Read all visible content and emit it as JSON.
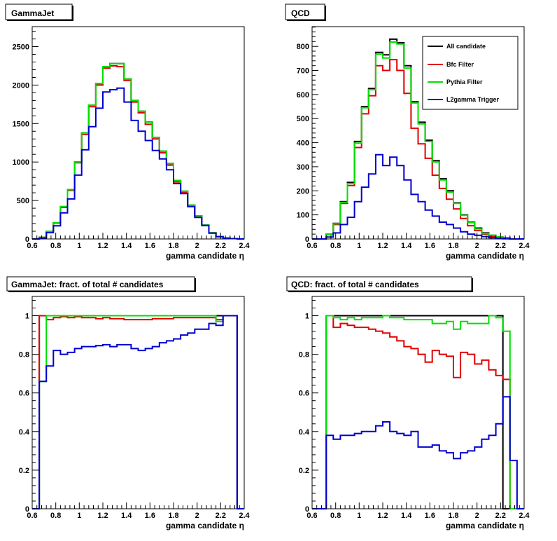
{
  "colors": {
    "all_candidate": "#000000",
    "bfc_filter": "#e00000",
    "pythia_filter": "#00e000",
    "l2gamma_trigger": "#0000d0"
  },
  "legend": {
    "entries": [
      "All candidate",
      "Bfc Filter",
      "Pythia Filter",
      "L2gamma Trigger"
    ]
  },
  "chart_data": [
    {
      "type": "histogram",
      "title": "GammaJet",
      "xlabel": "gamma candidate   η",
      "xlim": [
        0.6,
        2.4
      ],
      "ylim": [
        0,
        2760
      ],
      "xticks": [
        "0.6",
        "0.8",
        "1",
        "1.2",
        "1.4",
        "1.6",
        "1.8",
        "2",
        "2.2",
        "2.4"
      ],
      "yticks": [
        0,
        500,
        1000,
        1500,
        2000,
        2500
      ],
      "bin_edges": [
        0.6,
        0.66,
        0.72,
        0.78,
        0.84,
        0.9,
        0.96,
        1.02,
        1.08,
        1.14,
        1.2,
        1.26,
        1.32,
        1.38,
        1.44,
        1.5,
        1.56,
        1.62,
        1.68,
        1.74,
        1.8,
        1.86,
        1.92,
        1.98,
        2.04,
        2.1,
        2.16,
        2.22,
        2.28,
        2.34,
        2.4
      ],
      "series": [
        {
          "name": "All candidate",
          "color": "#000000",
          "values": [
            0,
            20,
            100,
            210,
            420,
            640,
            1000,
            1380,
            1740,
            2020,
            2240,
            2280,
            2280,
            2080,
            1800,
            1660,
            1520,
            1320,
            1140,
            980,
            760,
            620,
            440,
            300,
            180,
            80,
            30,
            10,
            5,
            0
          ]
        },
        {
          "name": "Bfc Filter",
          "color": "#e00000",
          "values": [
            0,
            20,
            98,
            206,
            410,
            630,
            990,
            1360,
            1720,
            2000,
            2220,
            2250,
            2240,
            2060,
            1780,
            1640,
            1490,
            1300,
            1120,
            960,
            740,
            610,
            430,
            290,
            175,
            78,
            30,
            10,
            5,
            0
          ]
        },
        {
          "name": "Pythia Filter",
          "color": "#00e000",
          "values": [
            0,
            20,
            100,
            210,
            420,
            640,
            1000,
            1380,
            1740,
            2020,
            2240,
            2280,
            2280,
            2080,
            1800,
            1660,
            1520,
            1320,
            1140,
            980,
            760,
            620,
            440,
            300,
            180,
            80,
            30,
            10,
            5,
            0
          ]
        },
        {
          "name": "L2gamma Trigger",
          "color": "#0000d0",
          "values": [
            0,
            13,
            82,
            170,
            340,
            520,
            830,
            1160,
            1460,
            1700,
            1910,
            1940,
            1960,
            1780,
            1540,
            1400,
            1280,
            1150,
            1040,
            900,
            720,
            590,
            420,
            280,
            175,
            75,
            30,
            10,
            5,
            0
          ]
        }
      ]
    },
    {
      "type": "histogram",
      "title": "QCD",
      "xlabel": "gamma candidate   η",
      "xlim": [
        0.6,
        2.4
      ],
      "ylim": [
        0,
        882
      ],
      "xticks": [
        "0.6",
        "0.8",
        "1",
        "1.2",
        "1.4",
        "1.6",
        "1.8",
        "2",
        "2.2",
        "2.4"
      ],
      "yticks": [
        0,
        100,
        200,
        300,
        400,
        500,
        600,
        700,
        800
      ],
      "legend": "top-right",
      "bin_edges": [
        0.6,
        0.66,
        0.72,
        0.78,
        0.84,
        0.9,
        0.96,
        1.02,
        1.08,
        1.14,
        1.2,
        1.26,
        1.32,
        1.38,
        1.44,
        1.5,
        1.56,
        1.62,
        1.68,
        1.74,
        1.8,
        1.86,
        1.92,
        1.98,
        2.04,
        2.1,
        2.16,
        2.22,
        2.28,
        2.34,
        2.4
      ],
      "series": [
        {
          "name": "All candidate",
          "color": "#000000",
          "values": [
            0,
            0,
            20,
            65,
            155,
            235,
            405,
            550,
            625,
            775,
            765,
            830,
            815,
            720,
            570,
            485,
            410,
            325,
            250,
            200,
            150,
            100,
            70,
            45,
            25,
            15,
            8,
            5,
            0,
            0
          ]
        },
        {
          "name": "Bfc Filter",
          "color": "#e00000",
          "values": [
            0,
            0,
            18,
            60,
            148,
            222,
            380,
            520,
            595,
            720,
            700,
            745,
            700,
            605,
            460,
            395,
            335,
            265,
            210,
            165,
            125,
            85,
            55,
            35,
            20,
            10,
            5,
            3,
            0,
            0
          ]
        },
        {
          "name": "Pythia Filter",
          "color": "#00e000",
          "values": [
            0,
            0,
            20,
            63,
            152,
            230,
            398,
            545,
            620,
            768,
            752,
            818,
            810,
            710,
            565,
            478,
            405,
            320,
            245,
            195,
            148,
            98,
            68,
            42,
            22,
            15,
            8,
            5,
            0,
            0
          ]
        },
        {
          "name": "L2gamma Trigger",
          "color": "#0000d0",
          "values": [
            0,
            0,
            8,
            25,
            60,
            90,
            155,
            215,
            270,
            350,
            305,
            340,
            305,
            245,
            185,
            155,
            120,
            95,
            70,
            60,
            45,
            30,
            20,
            15,
            10,
            5,
            3,
            1,
            0,
            0
          ]
        }
      ]
    },
    {
      "type": "histogram",
      "title": "GammaJet: fract. of total # candidates",
      "xlabel": "gamma candidate   η",
      "xlim": [
        0.6,
        2.4
      ],
      "ylim": [
        0,
        1.1
      ],
      "xticks": [
        "0.6",
        "0.8",
        "1",
        "1.2",
        "1.4",
        "1.6",
        "1.8",
        "2",
        "2.2",
        "2.4"
      ],
      "yticks": [
        "0",
        "0.2",
        "0.4",
        "0.6",
        "0.8",
        "1"
      ],
      "bin_edges": [
        0.6,
        0.66,
        0.72,
        0.78,
        0.84,
        0.9,
        0.96,
        1.02,
        1.08,
        1.14,
        1.2,
        1.26,
        1.32,
        1.38,
        1.44,
        1.5,
        1.56,
        1.62,
        1.68,
        1.74,
        1.8,
        1.86,
        1.92,
        1.98,
        2.04,
        2.1,
        2.16,
        2.22,
        2.28,
        2.34,
        2.4
      ],
      "series": [
        {
          "name": "All candidate",
          "color": "#000000",
          "values": [
            0,
            1,
            1,
            1,
            1,
            1,
            1,
            1,
            1,
            1,
            1,
            1,
            1,
            1,
            1,
            1,
            1,
            1,
            1,
            1,
            1,
            1,
            1,
            1,
            1,
            1,
            1,
            1,
            1,
            0
          ]
        },
        {
          "name": "Bfc Filter",
          "color": "#e00000",
          "values": [
            0,
            1,
            0.98,
            0.99,
            0.995,
            0.99,
            0.995,
            0.99,
            0.99,
            0.985,
            0.99,
            0.985,
            0.985,
            0.98,
            0.98,
            0.98,
            0.98,
            0.985,
            0.985,
            0.985,
            0.99,
            0.99,
            0.99,
            0.99,
            0.99,
            0.99,
            0.98,
            1,
            1,
            0
          ]
        },
        {
          "name": "Pythia Filter",
          "color": "#00e000",
          "values": [
            0,
            0.66,
            1,
            1,
            1,
            1,
            1,
            1,
            1,
            1,
            1,
            1,
            1,
            1,
            1,
            1,
            1,
            1,
            1,
            1,
            1,
            1,
            1,
            1,
            1,
            1,
            0.97,
            1,
            1,
            0
          ]
        },
        {
          "name": "L2gamma Trigger",
          "color": "#0000d0",
          "values": [
            0,
            0.66,
            0.74,
            0.82,
            0.8,
            0.81,
            0.83,
            0.84,
            0.84,
            0.845,
            0.85,
            0.84,
            0.85,
            0.85,
            0.83,
            0.82,
            0.83,
            0.84,
            0.86,
            0.87,
            0.88,
            0.9,
            0.91,
            0.93,
            0.93,
            0.96,
            0.95,
            1,
            1,
            0
          ]
        }
      ]
    },
    {
      "type": "histogram",
      "title": "QCD: fract. of total # candidates",
      "xlabel": "gamma candidate   η",
      "xlim": [
        0.6,
        2.4
      ],
      "ylim": [
        0,
        1.1
      ],
      "xticks": [
        "0.6",
        "0.8",
        "1",
        "1.2",
        "1.4",
        "1.6",
        "1.8",
        "2",
        "2.2",
        "2.4"
      ],
      "yticks": [
        "0",
        "0.2",
        "0.4",
        "0.6",
        "0.8",
        "1"
      ],
      "bin_edges": [
        0.6,
        0.66,
        0.72,
        0.78,
        0.84,
        0.9,
        0.96,
        1.02,
        1.08,
        1.14,
        1.2,
        1.26,
        1.32,
        1.38,
        1.44,
        1.5,
        1.56,
        1.62,
        1.68,
        1.74,
        1.8,
        1.86,
        1.92,
        1.98,
        2.04,
        2.1,
        2.16,
        2.22,
        2.28,
        2.34,
        2.4
      ],
      "series": [
        {
          "name": "All candidate",
          "color": "#000000",
          "values": [
            0,
            0,
            1,
            1,
            1,
            1,
            1,
            1,
            1,
            1,
            1,
            1,
            1,
            1,
            1,
            1,
            1,
            1,
            1,
            1,
            1,
            1,
            1,
            1,
            1,
            1,
            1,
            0,
            0,
            0
          ]
        },
        {
          "name": "Bfc Filter",
          "color": "#e00000",
          "values": [
            0,
            0,
            1,
            0.94,
            0.96,
            0.95,
            0.94,
            0.94,
            0.93,
            0.92,
            0.91,
            0.89,
            0.87,
            0.84,
            0.83,
            0.8,
            0.76,
            0.82,
            0.8,
            0.79,
            0.68,
            0.81,
            0.8,
            0.75,
            0.77,
            0.72,
            0.69,
            0.67,
            0,
            0
          ]
        },
        {
          "name": "Pythia Filter",
          "color": "#00e000",
          "values": [
            0,
            0,
            1,
            0.99,
            0.98,
            0.99,
            0.98,
            0.99,
            0.99,
            0.99,
            1,
            0.99,
            0.99,
            0.98,
            0.98,
            0.98,
            0.98,
            0.96,
            0.96,
            0.97,
            0.93,
            0.97,
            0.96,
            0.96,
            0.96,
            1,
            0.99,
            0.92,
            0,
            0
          ]
        },
        {
          "name": "L2gamma Trigger",
          "color": "#0000d0",
          "values": [
            0,
            0,
            0.38,
            0.36,
            0.38,
            0.38,
            0.39,
            0.4,
            0.4,
            0.43,
            0.45,
            0.4,
            0.39,
            0.38,
            0.4,
            0.32,
            0.32,
            0.33,
            0.3,
            0.29,
            0.26,
            0.29,
            0.3,
            0.32,
            0.36,
            0.38,
            0.44,
            0.58,
            0.25,
            0
          ]
        }
      ]
    }
  ]
}
